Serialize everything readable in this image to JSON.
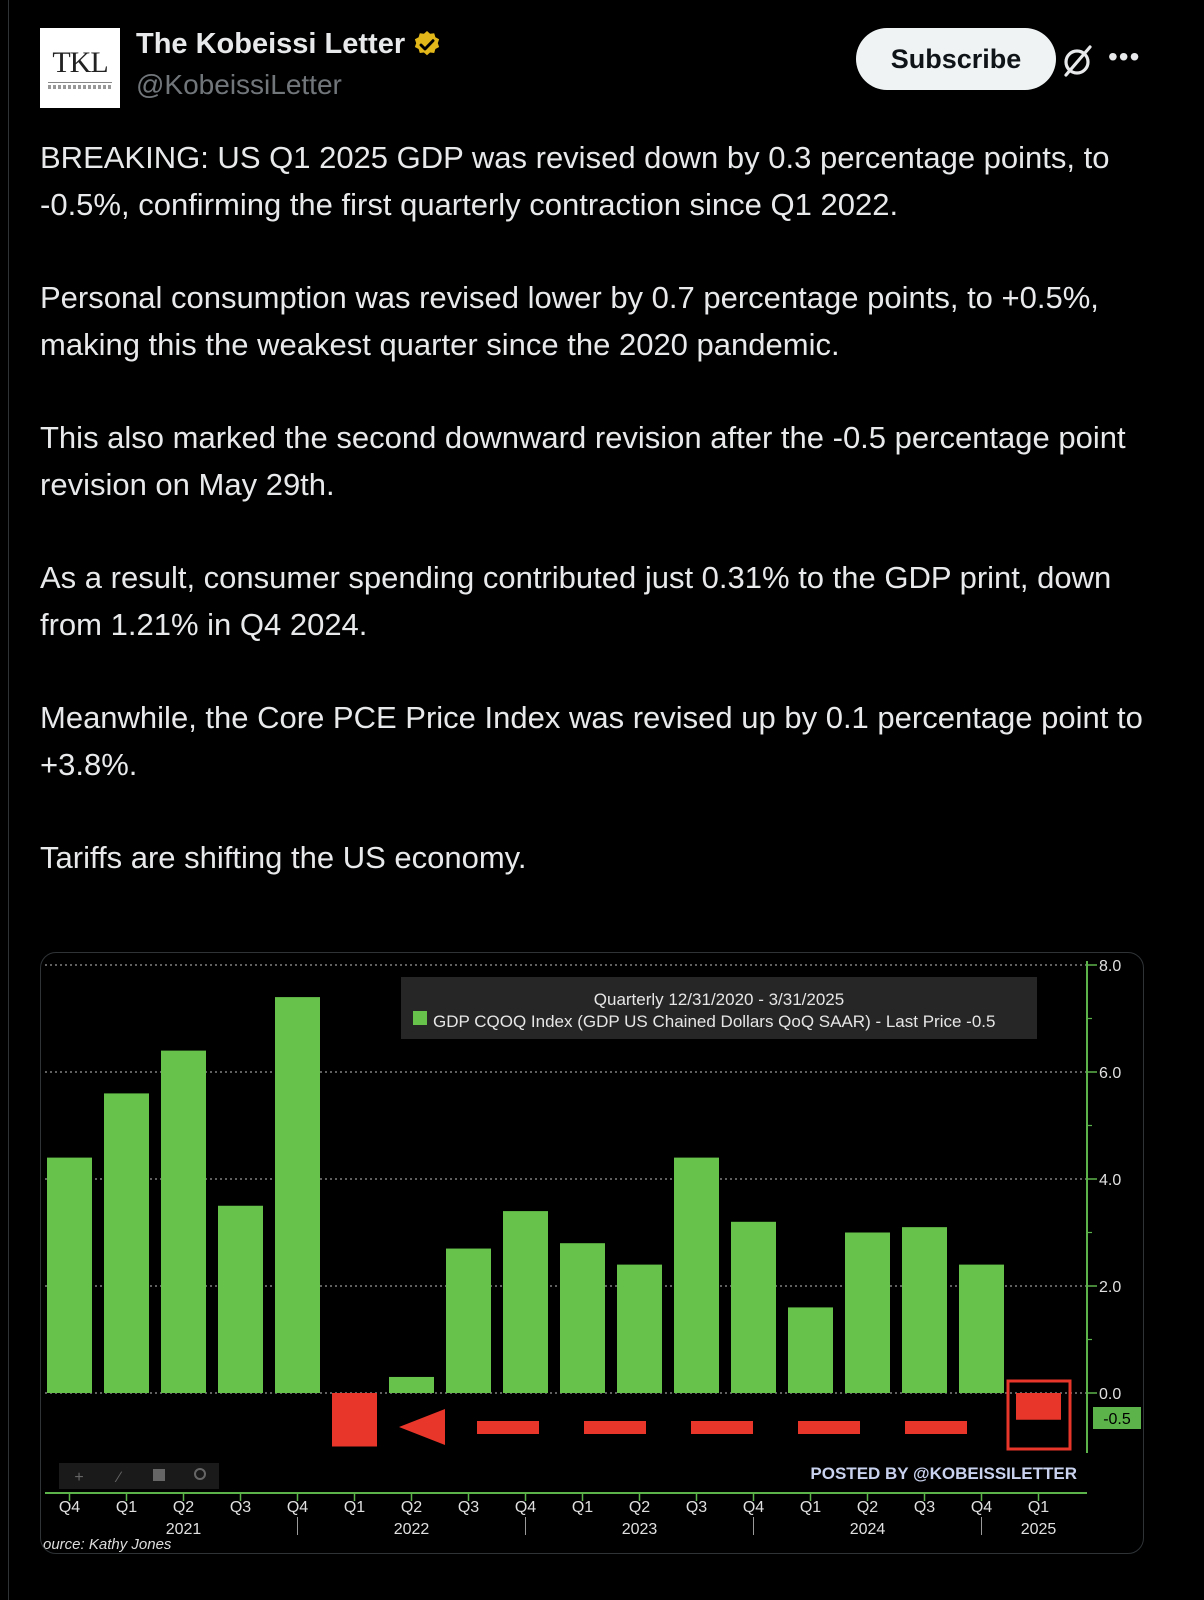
{
  "author": {
    "avatar_text": "TKL",
    "display_name": "The Kobeissi Letter",
    "handle": "@KobeissiLetter",
    "verified_color": "#e2b719"
  },
  "actions": {
    "subscribe_label": "Subscribe",
    "more_label": "•••"
  },
  "tweet": {
    "paragraphs": [
      "BREAKING: US Q1 2025 GDP was revised down by 0.3 percentage points, to -0.5%, confirming the first quarterly contraction since Q1 2022.",
      "Personal consumption was revised lower by 0.7 percentage points, to +0.5%, making this the weakest quarter since the 2020 pandemic.",
      "This also marked the second downward revision after the -0.5 percentage point revision on May 29th.",
      "As a result, consumer spending contributed just 0.31% to the GDP print, down from 1.21% in Q4 2024.",
      "Meanwhile, the Core PCE Price Index was revised up by 0.1 percentage point to +3.8%.",
      "Tariffs are shifting the US economy."
    ]
  },
  "chart_data": {
    "type": "bar",
    "legend_title": "Quarterly 12/31/2020 - 3/31/2025",
    "legend_entry": "GDP CQOQ Index (GDP US Chained Dollars QoQ SAAR) - Last Price -0.5",
    "categories": [
      "Q4",
      "Q1",
      "Q2",
      "Q3",
      "Q4",
      "Q1",
      "Q2",
      "Q3",
      "Q4",
      "Q1",
      "Q2",
      "Q3",
      "Q4",
      "Q1",
      "Q2",
      "Q3",
      "Q4",
      "Q1"
    ],
    "years": [
      {
        "label": "2021",
        "after_index": 2
      },
      {
        "label": "2022",
        "after_index": 6
      },
      {
        "label": "2023",
        "after_index": 10
      },
      {
        "label": "2024",
        "after_index": 14
      },
      {
        "label": "2025",
        "after_index": 17
      }
    ],
    "values": [
      4.4,
      5.6,
      6.4,
      3.5,
      7.4,
      -1.0,
      0.3,
      2.7,
      3.4,
      2.8,
      2.4,
      4.4,
      3.2,
      1.6,
      3.0,
      3.1,
      2.4,
      -0.5
    ],
    "yticks": [
      "8.0",
      "6.0",
      "4.0",
      "2.0",
      "0.0"
    ],
    "ylim": [
      -1.9,
      8.0
    ],
    "last_price_label": "-0.5",
    "watermark": "POSTED BY @KOBEISSILETTER",
    "source": "ource: Kathy Jones",
    "bar_color": "#66c24a",
    "negative_color": "#e8362a",
    "grid": true
  }
}
